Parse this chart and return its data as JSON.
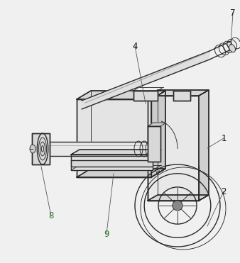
{
  "background_color": "#f0f0f0",
  "line_color": "#2a2a2a",
  "lw": 1.0,
  "tlw": 0.65,
  "fig_width": 3.38,
  "fig_height": 3.71,
  "dpi": 100,
  "label_fontsize": 8.5,
  "label_color": "#111111",
  "green_label_color": "#2a7a2a"
}
